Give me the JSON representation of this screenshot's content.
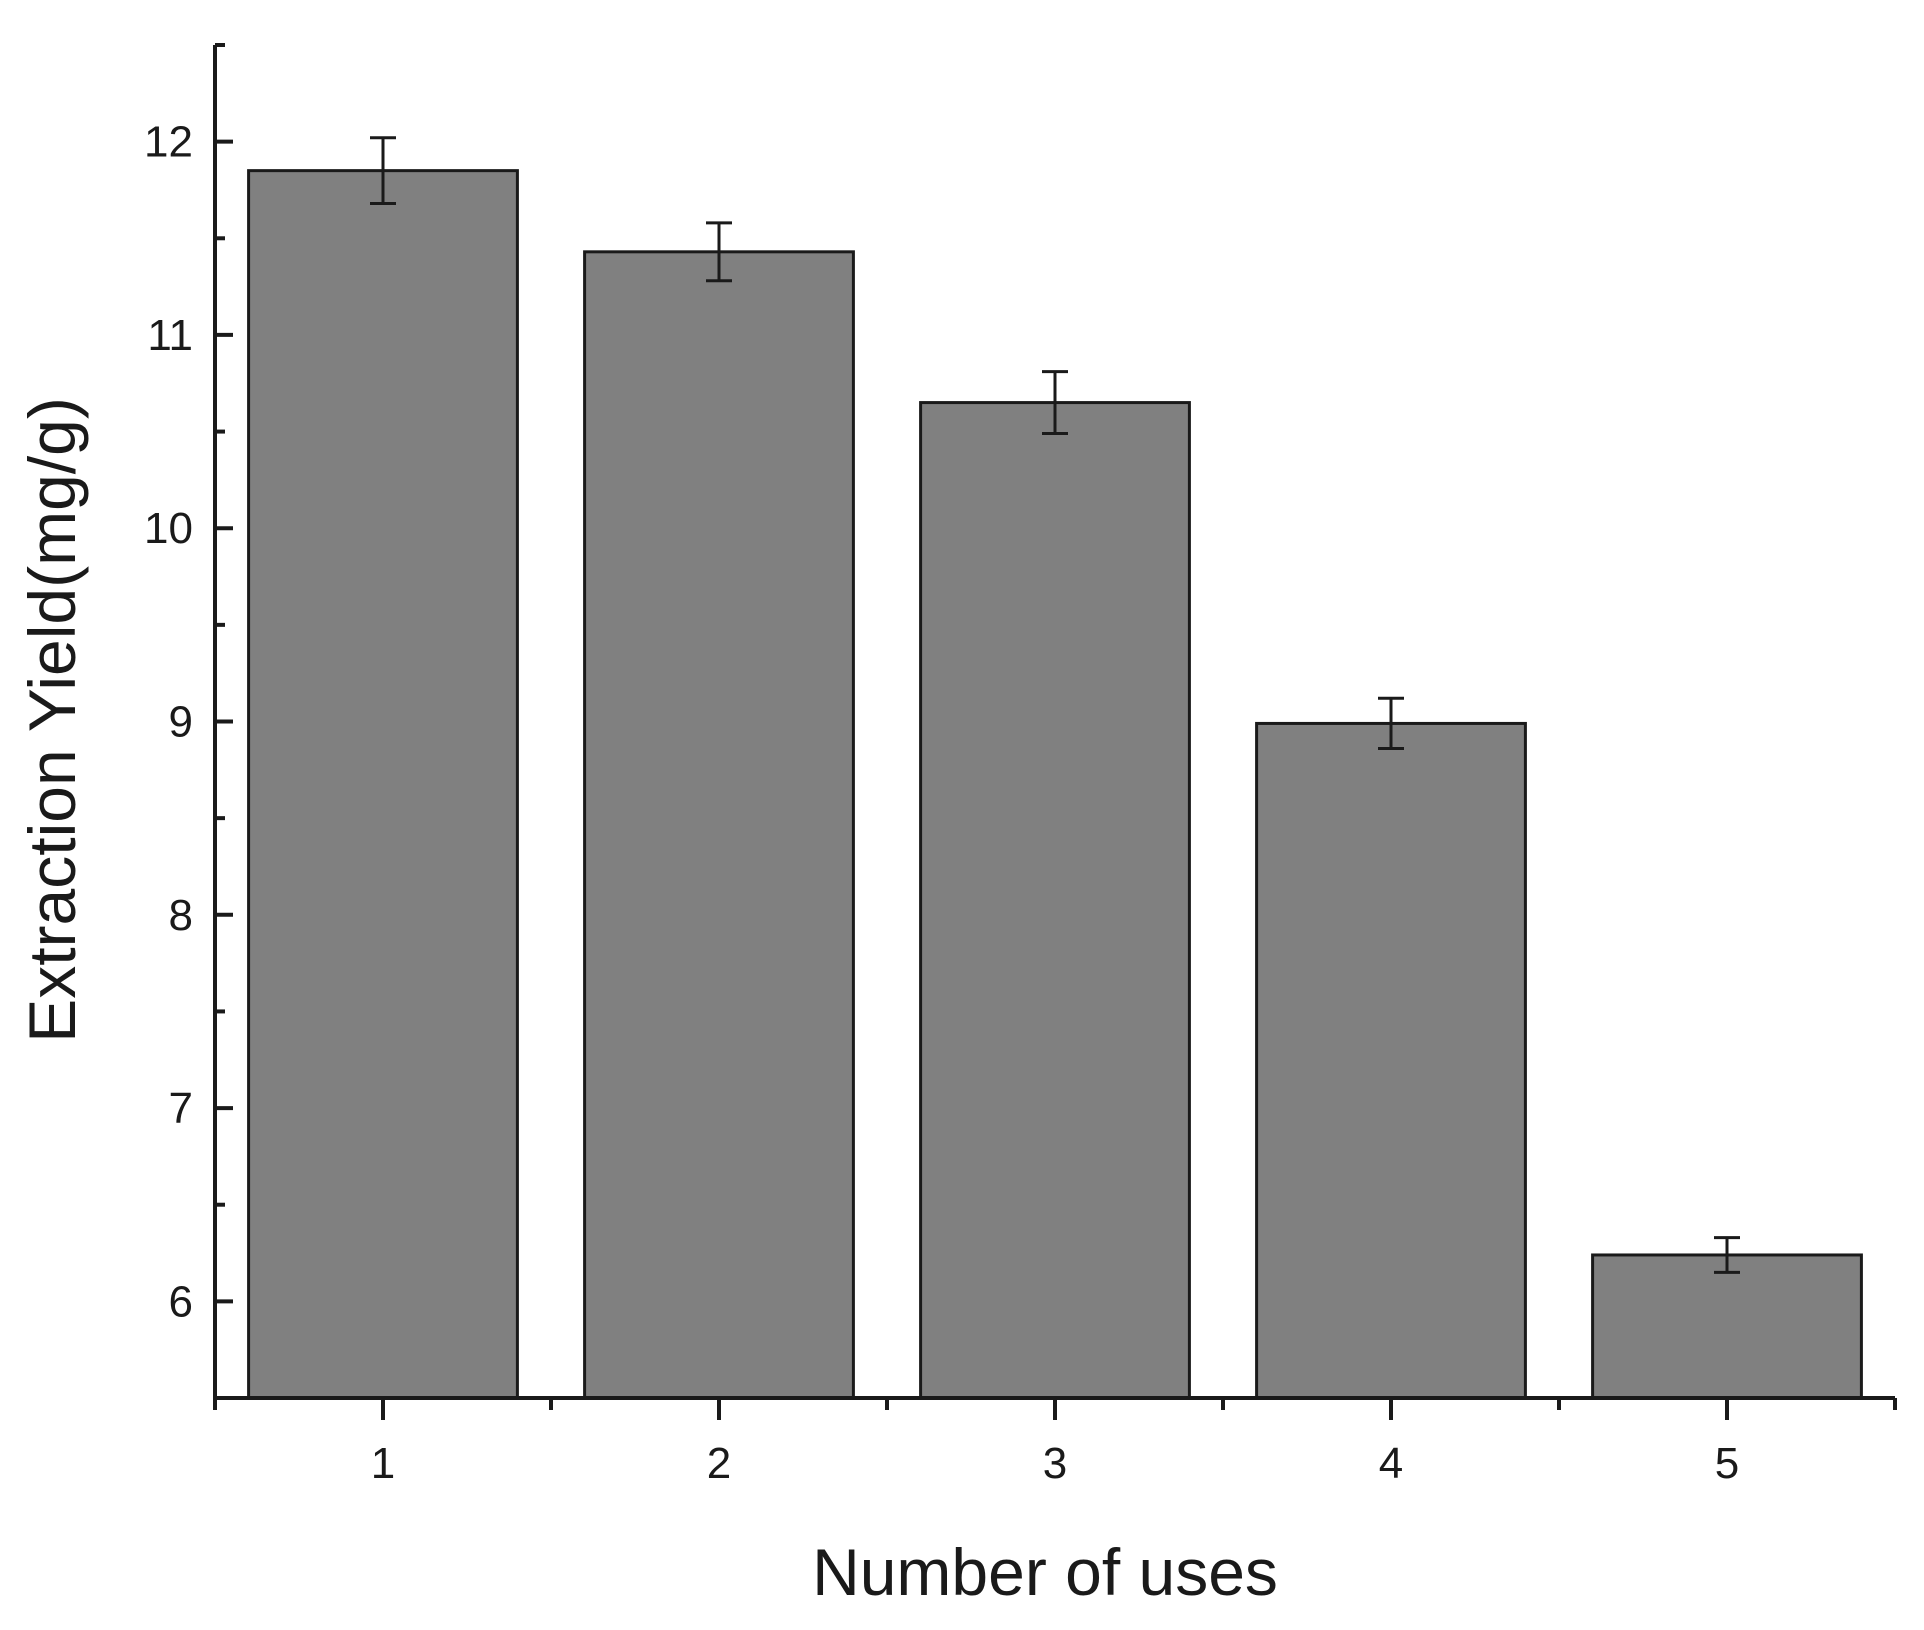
{
  "chart_data": {
    "type": "bar",
    "categories": [
      "1",
      "2",
      "3",
      "4",
      "5"
    ],
    "values": [
      11.85,
      11.43,
      10.65,
      8.99,
      6.24
    ],
    "error": [
      0.17,
      0.15,
      0.16,
      0.13,
      0.09
    ],
    "xlabel": "Number of uses",
    "ylabel": "Extraction Yield(mg/g)",
    "ylim": [
      5.5,
      12.5
    ],
    "yticks": [
      "6",
      "7",
      "8",
      "9",
      "10",
      "11",
      "12"
    ],
    "ytick_values": [
      6,
      7,
      8,
      9,
      10,
      11,
      12
    ],
    "yminor_values": [
      6.5,
      7.5,
      8.5,
      9.5,
      10.5,
      11.5,
      12.5
    ],
    "grid": false,
    "bar_color": "#808080",
    "edge_color": "#1a1a1a"
  }
}
